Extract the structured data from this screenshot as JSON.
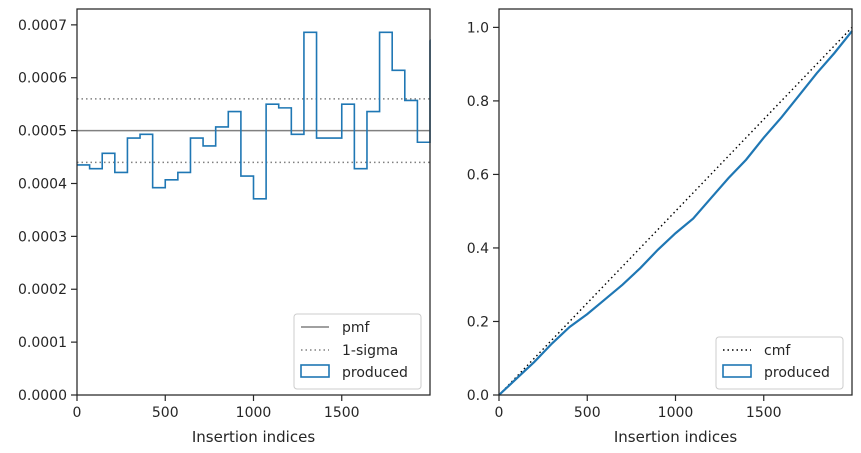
{
  "chart_data": [
    {
      "type": "histogram",
      "xlabel": "Insertion indices",
      "ylabel": "",
      "xlim": [
        0,
        2000
      ],
      "ylim": [
        0,
        0.00073
      ],
      "xticks": [
        0,
        500,
        1000,
        1500
      ],
      "xtick_labels": [
        "0",
        "500",
        "1000",
        "1500"
      ],
      "yticks": [
        0,
        0.0001,
        0.0002,
        0.0003,
        0.0004,
        0.0005,
        0.0006,
        0.0007
      ],
      "ytick_labels": [
        "0.0000",
        "0.0001",
        "0.0002",
        "0.0003",
        "0.0004",
        "0.0005",
        "0.0006",
        "0.0007"
      ],
      "legend": {
        "placement": "lower right",
        "entries": [
          "pmf",
          "1-sigma",
          "produced"
        ]
      },
      "reference_lines": [
        {
          "name": "pmf",
          "y": 0.0005,
          "style": "solid",
          "color": "#808080"
        },
        {
          "name": "1-sigma",
          "y": 0.00044,
          "style": "dotted",
          "color": "#808080"
        },
        {
          "name": "1-sigma",
          "y": 0.00056,
          "style": "dotted",
          "color": "#808080"
        }
      ],
      "series": [
        {
          "name": "produced",
          "style": "step",
          "color": "#1f77b4",
          "bin_width": 71.43,
          "values": [
            0.000435,
            0.000428,
            0.000457,
            0.000421,
            0.000486,
            0.000493,
            0.000392,
            0.000407,
            0.000421,
            0.000486,
            0.000471,
            0.000507,
            0.000536,
            0.000414,
            0.000371,
            0.00055,
            0.000543,
            0.000493,
            0.000686,
            0.000486,
            0.000486,
            0.00055,
            0.000428,
            0.000536,
            0.000686,
            0.000614,
            0.000557,
            0.000478,
            0.000671
          ]
        }
      ],
      "grid": false
    },
    {
      "type": "line",
      "xlabel": "Insertion indices",
      "ylabel": "",
      "xlim": [
        0,
        2000
      ],
      "ylim": [
        0,
        1.05
      ],
      "xticks": [
        0,
        500,
        1000,
        1500
      ],
      "xtick_labels": [
        "0",
        "500",
        "1000",
        "1500"
      ],
      "yticks": [
        0,
        0.2,
        0.4,
        0.6,
        0.8,
        1.0
      ],
      "ytick_labels": [
        "0.0",
        "0.2",
        "0.4",
        "0.6",
        "0.8",
        "1.0"
      ],
      "legend": {
        "placement": "lower right",
        "entries": [
          "cmf",
          "produced"
        ]
      },
      "series": [
        {
          "name": "cmf",
          "style": "dotted",
          "color": "#000000",
          "x": [
            0,
            2000
          ],
          "y": [
            0,
            1.0
          ]
        },
        {
          "name": "produced",
          "style": "solid",
          "color": "#1f77b4",
          "x": [
            0,
            100,
            200,
            300,
            400,
            500,
            600,
            700,
            800,
            900,
            1000,
            1100,
            1200,
            1300,
            1400,
            1500,
            1600,
            1700,
            1800,
            1900,
            2000
          ],
          "y": [
            0,
            0.045,
            0.09,
            0.14,
            0.185,
            0.22,
            0.26,
            0.3,
            0.345,
            0.395,
            0.44,
            0.48,
            0.535,
            0.59,
            0.64,
            0.7,
            0.755,
            0.815,
            0.875,
            0.93,
            0.99
          ]
        }
      ],
      "grid": false
    }
  ]
}
